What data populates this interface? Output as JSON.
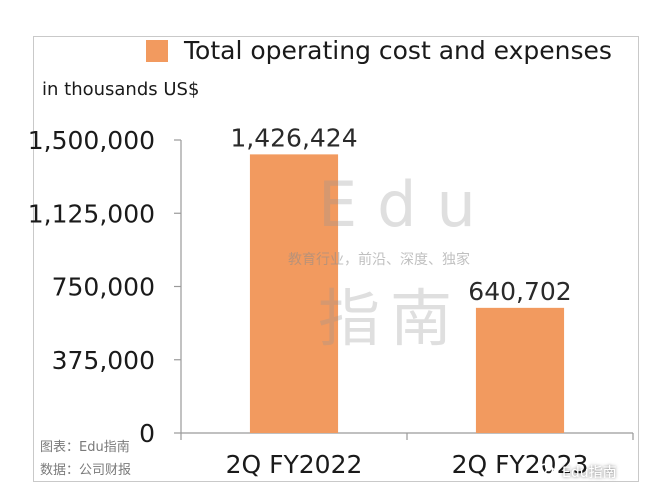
{
  "chart_data": {
    "type": "bar",
    "categories": [
      "2Q FY2022",
      "2Q FY2023"
    ],
    "series": [
      {
        "name": "Total operating cost and expenses",
        "values": [
          1426424,
          640702
        ]
      }
    ],
    "data_labels": [
      "1,426,424",
      "640,702"
    ],
    "ylabel": "in thousands US$",
    "ylim": [
      0,
      1500000
    ],
    "yticks": [
      0,
      375000,
      750000,
      1125000,
      1500000
    ],
    "ytick_labels": [
      "0",
      "375,000",
      "750,000",
      "1,125,000",
      "1,500,000"
    ],
    "legend": "top",
    "grid": false,
    "colors": {
      "bar": "#f29a5f",
      "axis": "#9a9a9a",
      "text": "#1a1a1a"
    }
  },
  "source": {
    "chart_by": "图表：Edu指南",
    "data_from": "数据：公司财报"
  },
  "watermark": {
    "brand": "Edu",
    "brand_cn": "指南",
    "tagline": "教育行业，前沿、深度、独家",
    "account": "Edu指南"
  }
}
